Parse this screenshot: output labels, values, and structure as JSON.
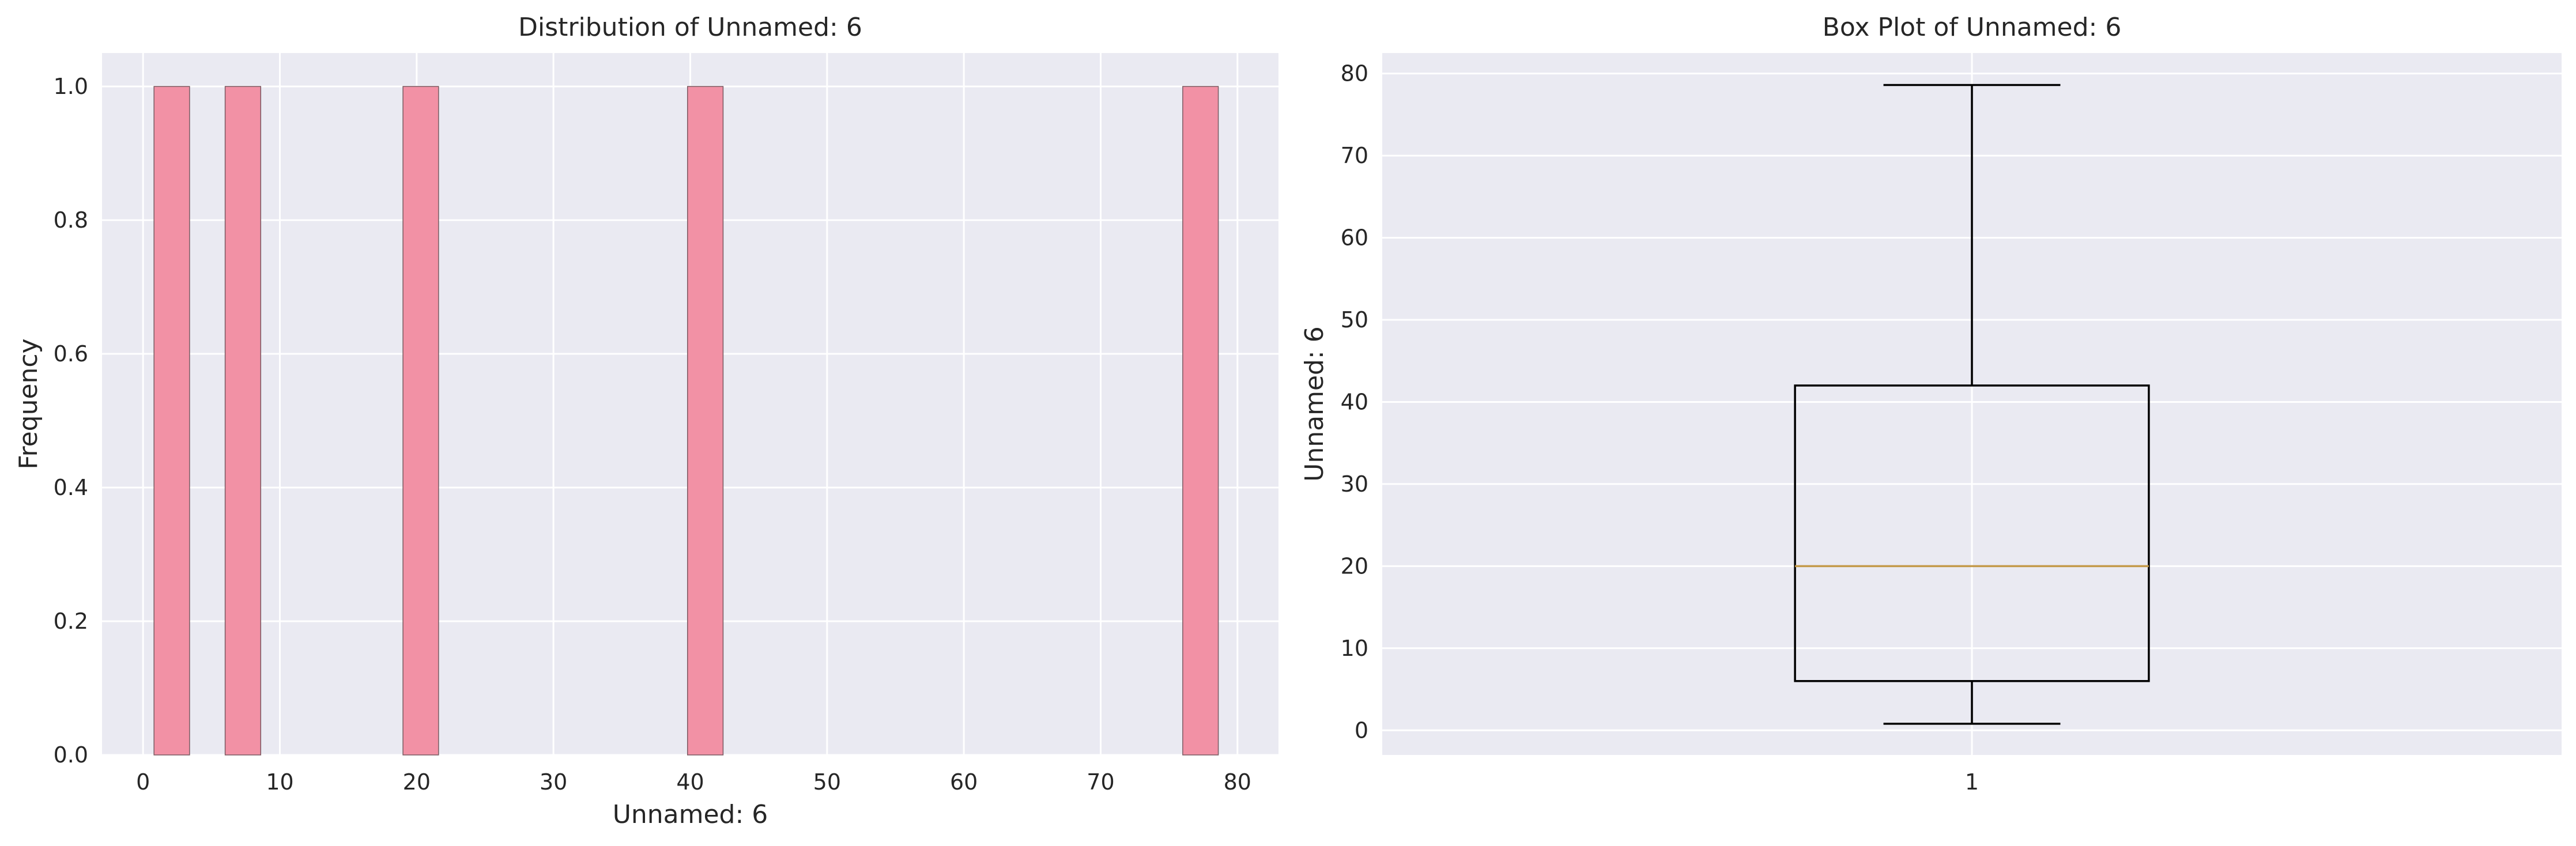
{
  "chart_data": [
    {
      "type": "bar",
      "subtype": "histogram",
      "title": "Distribution of Unnamed: 6",
      "xlabel": "Unnamed: 6",
      "ylabel": "Frequency",
      "xlim": [
        -3,
        83
      ],
      "ylim": [
        0,
        1.05
      ],
      "xticks": [
        0,
        10,
        20,
        30,
        40,
        50,
        60,
        70,
        80
      ],
      "yticks": [
        0.0,
        0.2,
        0.4,
        0.6,
        0.8,
        1.0
      ],
      "ytick_labels": [
        "0.0",
        "0.2",
        "0.4",
        "0.6",
        "0.8",
        "1.0"
      ],
      "bins": [
        {
          "start": 0.8,
          "end": 3.4,
          "count": 1
        },
        {
          "start": 6.0,
          "end": 8.6,
          "count": 1
        },
        {
          "start": 19.0,
          "end": 21.6,
          "count": 1
        },
        {
          "start": 39.8,
          "end": 42.4,
          "count": 1
        },
        {
          "start": 76.0,
          "end": 78.6,
          "count": 1
        }
      ],
      "bar_color": "#f291a5",
      "bar_edge_color": "#7a5a62",
      "background": "#eaeaf2",
      "grid": true
    },
    {
      "type": "box",
      "title": "Box Plot of Unnamed: 6",
      "xlabel": "",
      "ylabel": "Unnamed: 6",
      "xlim": [
        0.5,
        1.5
      ],
      "ylim": [
        -3,
        82.5
      ],
      "xticks": [
        1
      ],
      "xtick_labels": [
        "1"
      ],
      "yticks": [
        0,
        10,
        20,
        30,
        40,
        50,
        60,
        70,
        80
      ],
      "ytick_labels": [
        "0",
        "10",
        "20",
        "30",
        "40",
        "50",
        "60",
        "70",
        "80"
      ],
      "box": {
        "position": 1,
        "whisker_low": 0.8,
        "q1": 6.0,
        "median": 20.0,
        "q3": 42.0,
        "whisker_high": 78.6
      },
      "box_color": "#000000",
      "median_color": "#c49a4a",
      "background": "#eaeaf2",
      "grid": true
    }
  ]
}
